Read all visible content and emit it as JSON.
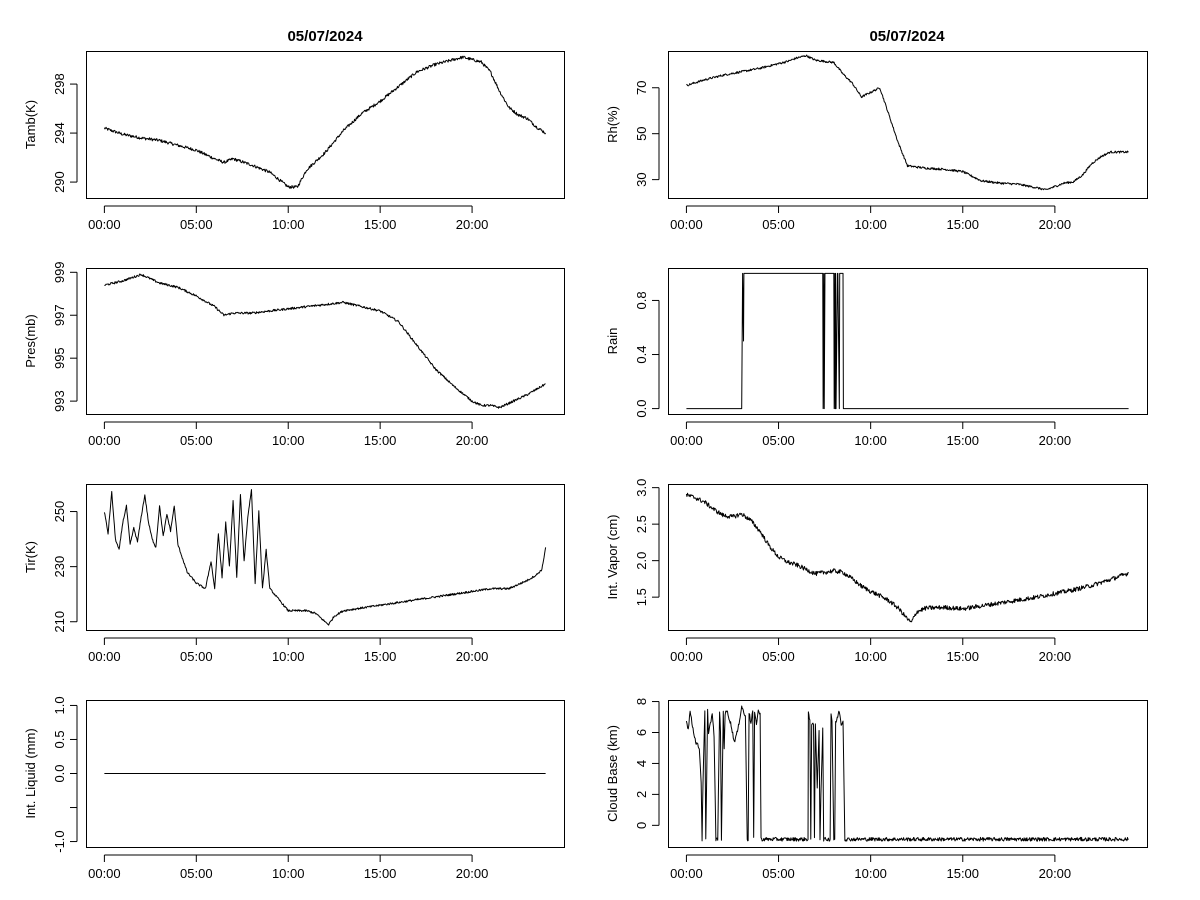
{
  "titles": {
    "left": "05/07/2024",
    "right": "05/07/2024"
  },
  "chart_data": [
    {
      "type": "line",
      "id": "tamb",
      "ylabel": "Tamb(K)",
      "xlim": [
        -1,
        25
      ],
      "ylim": [
        288.7,
        300.7
      ],
      "xticks": [
        0,
        5,
        10,
        15,
        20
      ],
      "xticklabels": [
        "00:00",
        "05:00",
        "10:00",
        "15:00",
        "20:00"
      ],
      "yticks": [
        290,
        294,
        298
      ],
      "yticklabels": [
        "290",
        "294",
        "298"
      ],
      "noise": 0.12,
      "x": [
        0,
        1,
        2,
        3,
        4,
        5,
        6,
        6.5,
        7,
        8,
        9,
        10,
        10.5,
        11,
        12,
        13,
        14,
        15,
        16,
        17,
        18,
        19,
        19.5,
        20,
        20.5,
        21,
        21.5,
        22,
        22.5,
        23,
        23.5,
        24
      ],
      "y": [
        294.4,
        293.9,
        293.6,
        293.4,
        293.0,
        292.6,
        291.9,
        291.6,
        291.9,
        291.4,
        290.8,
        289.6,
        289.6,
        291.0,
        292.4,
        294.2,
        295.6,
        296.6,
        297.8,
        299.0,
        299.6,
        300.0,
        300.2,
        300.0,
        299.8,
        299.0,
        297.4,
        296.1,
        295.5,
        295.2,
        294.5,
        294.0
      ]
    },
    {
      "type": "line",
      "id": "rh",
      "ylabel": "Rh(%)",
      "xlim": [
        -1,
        25
      ],
      "ylim": [
        22,
        86
      ],
      "xticks": [
        0,
        5,
        10,
        15,
        20
      ],
      "xticklabels": [
        "00:00",
        "05:00",
        "10:00",
        "15:00",
        "20:00"
      ],
      "yticks": [
        30,
        50,
        70
      ],
      "yticklabels": [
        "30",
        "50",
        "70"
      ],
      "noise": 0.45,
      "x": [
        0,
        1,
        2,
        3,
        4,
        5,
        5.5,
        6,
        6.5,
        7,
        8,
        8.5,
        9,
        9.5,
        10,
        10.5,
        11,
        11.5,
        12,
        13,
        14,
        15,
        16,
        17,
        18,
        19,
        19.5,
        20,
        20.5,
        21,
        21.5,
        22,
        22.5,
        23,
        24
      ],
      "y": [
        71,
        73.5,
        75.5,
        77,
        78.5,
        80.5,
        81.5,
        83,
        84,
        82,
        81,
        76,
        72,
        66,
        68,
        70,
        58,
        46,
        36,
        35,
        34.5,
        33.5,
        29.5,
        28.5,
        28,
        26.5,
        25.5,
        27,
        28.5,
        29,
        32,
        37,
        40,
        42,
        42
      ]
    },
    {
      "type": "line",
      "id": "pres",
      "ylabel": "Pres(mb)",
      "xlim": [
        -1,
        25
      ],
      "ylim": [
        992.4,
        999.2
      ],
      "xticks": [
        0,
        5,
        10,
        15,
        20
      ],
      "xticklabels": [
        "00:00",
        "05:00",
        "10:00",
        "15:00",
        "20:00"
      ],
      "yticks": [
        993,
        995,
        997,
        999
      ],
      "yticklabels": [
        "993",
        "995",
        "997",
        "999"
      ],
      "noise": 0.05,
      "x": [
        0,
        1,
        2,
        3,
        4,
        5,
        6,
        6.5,
        7,
        8,
        9,
        10,
        11,
        12,
        13,
        14,
        15,
        16,
        17,
        18,
        19,
        20,
        20.5,
        21,
        21.5,
        22,
        23,
        24
      ],
      "y": [
        998.4,
        998.6,
        998.9,
        998.5,
        998.3,
        997.9,
        997.4,
        997.0,
        997.1,
        997.1,
        997.2,
        997.3,
        997.4,
        997.5,
        997.6,
        997.4,
        997.2,
        996.7,
        995.6,
        994.5,
        993.7,
        993.0,
        992.8,
        992.8,
        992.7,
        992.9,
        993.3,
        993.8
      ]
    },
    {
      "type": "line",
      "id": "rain",
      "ylabel": "Rain",
      "xlim": [
        -1,
        25
      ],
      "ylim": [
        -0.04,
        1.04
      ],
      "xticks": [
        0,
        5,
        10,
        15,
        20
      ],
      "xticklabels": [
        "00:00",
        "05:00",
        "10:00",
        "15:00",
        "20:00"
      ],
      "yticks": [
        0,
        0.4,
        0.8
      ],
      "yticklabels": [
        "0.0",
        "0.4",
        "0.8"
      ],
      "noise": 0,
      "x": [
        0,
        3.0,
        3.05,
        3.1,
        3.12,
        3.14,
        3.16,
        3.18,
        7.4,
        7.42,
        7.46,
        7.48,
        7.52,
        7.54,
        8.0,
        8.02,
        8.06,
        8.08,
        8.1,
        8.12,
        8.2,
        8.22,
        8.3,
        8.32,
        8.5,
        8.52,
        24
      ],
      "y": [
        0,
        0,
        1,
        0.5,
        1,
        1,
        1,
        1,
        1,
        0,
        1,
        0,
        1,
        1,
        1,
        0,
        1,
        0,
        1,
        0,
        1,
        1,
        0,
        1,
        1,
        0,
        0
      ]
    },
    {
      "type": "line",
      "id": "tir",
      "ylabel": "Tir(K)",
      "xlim": [
        -1,
        25
      ],
      "ylim": [
        207,
        260
      ],
      "xticks": [
        0,
        5,
        10,
        15,
        20
      ],
      "xticklabels": [
        "00:00",
        "05:00",
        "10:00",
        "15:00",
        "20:00"
      ],
      "yticks": [
        210,
        230,
        250
      ],
      "yticklabels": [
        "210",
        "230",
        "250"
      ],
      "noise": 0.35,
      "x": [
        0,
        0.2,
        0.4,
        0.6,
        0.8,
        1.0,
        1.2,
        1.4,
        1.6,
        1.8,
        2.0,
        2.2,
        2.4,
        2.6,
        2.8,
        3.0,
        3.2,
        3.4,
        3.6,
        3.8,
        4.0,
        4.5,
        5.0,
        5.5,
        5.8,
        6.0,
        6.2,
        6.4,
        6.6,
        6.8,
        7.0,
        7.2,
        7.4,
        7.6,
        7.8,
        8.0,
        8.2,
        8.4,
        8.6,
        8.8,
        9.0,
        9.5,
        10,
        10.5,
        11,
        11.5,
        12,
        12.2,
        12.5,
        13,
        14,
        15,
        16,
        17,
        18,
        19,
        20,
        21,
        22,
        23,
        23.5,
        23.8,
        24
      ],
      "y": [
        250,
        242,
        257,
        240,
        236,
        246,
        252,
        238,
        244,
        239,
        248,
        256,
        246,
        240,
        237,
        252,
        241,
        249,
        243,
        252,
        238,
        228,
        224,
        222,
        232,
        222,
        242,
        226,
        246,
        230,
        254,
        226,
        256,
        232,
        248,
        258,
        224,
        250,
        222,
        236,
        222,
        218,
        214,
        214,
        214,
        213,
        210,
        209,
        212,
        214,
        215,
        216,
        217,
        218,
        219,
        220,
        221,
        222,
        222,
        225,
        227,
        229,
        237
      ]
    },
    {
      "type": "line",
      "id": "vapor",
      "ylabel": "Int. Vapor (cm)",
      "xlim": [
        -1,
        25
      ],
      "ylim": [
        1.05,
        3.05
      ],
      "xticks": [
        0,
        5,
        10,
        15,
        20
      ],
      "xticklabels": [
        "00:00",
        "05:00",
        "10:00",
        "15:00",
        "20:00"
      ],
      "yticks": [
        1.5,
        2.0,
        2.5,
        3.0
      ],
      "yticklabels": [
        "1.5",
        "2.0",
        "2.5",
        "3.0"
      ],
      "noise": 0.03,
      "x": [
        0,
        0.5,
        1,
        1.5,
        2,
        2.5,
        3,
        3.5,
        4,
        4.5,
        5,
        5.5,
        6,
        6.5,
        7,
        7.5,
        8,
        8.5,
        9,
        9.5,
        10,
        10.5,
        11,
        11.5,
        12,
        12.2,
        12.5,
        13,
        14,
        15,
        16,
        17,
        18,
        19,
        20,
        21,
        22,
        23,
        24
      ],
      "y": [
        2.9,
        2.86,
        2.8,
        2.7,
        2.62,
        2.6,
        2.64,
        2.55,
        2.4,
        2.2,
        2.05,
        1.98,
        1.94,
        1.88,
        1.82,
        1.84,
        1.86,
        1.84,
        1.75,
        1.65,
        1.58,
        1.52,
        1.45,
        1.35,
        1.2,
        1.15,
        1.3,
        1.35,
        1.36,
        1.34,
        1.38,
        1.42,
        1.46,
        1.5,
        1.55,
        1.6,
        1.66,
        1.74,
        1.83
      ]
    },
    {
      "type": "line",
      "id": "liquid",
      "ylabel": "Int. Liquid (mm)",
      "xlim": [
        -1,
        25
      ],
      "ylim": [
        -1.08,
        1.08
      ],
      "xticks": [
        0,
        5,
        10,
        15,
        20
      ],
      "xticklabels": [
        "00:00",
        "05:00",
        "10:00",
        "15:00",
        "20:00"
      ],
      "yticks": [
        -1.0,
        -0.5,
        0.0,
        0.5,
        1.0
      ],
      "yticklabels": [
        "-1.0",
        "",
        "0.0",
        "0.5",
        "1.0"
      ],
      "noise": 0,
      "x": [
        0,
        24
      ],
      "y": [
        0,
        0
      ]
    },
    {
      "type": "line",
      "id": "cloudbase",
      "ylabel": "Cloud Base (km)",
      "xlim": [
        -1,
        25
      ],
      "ylim": [
        -1.4,
        8.1
      ],
      "xticks": [
        0,
        5,
        10,
        15,
        20
      ],
      "xticklabels": [
        "00:00",
        "05:00",
        "10:00",
        "15:00",
        "20:00"
      ],
      "yticks": [
        0,
        2,
        4,
        6,
        8
      ],
      "yticklabels": [
        "0",
        "2",
        "4",
        "6",
        "8"
      ],
      "noise": 0.12,
      "x": [
        0,
        0.1,
        0.2,
        0.3,
        0.5,
        0.7,
        0.8,
        0.85,
        0.9,
        1.0,
        1.05,
        1.1,
        1.15,
        1.2,
        1.3,
        1.4,
        1.5,
        1.6,
        1.7,
        1.8,
        1.85,
        1.9,
        2.0,
        2.05,
        2.1,
        2.2,
        2.4,
        2.6,
        2.8,
        3.0,
        3.2,
        3.3,
        3.35,
        3.4,
        3.5,
        3.6,
        3.65,
        3.7,
        3.8,
        3.9,
        4.0,
        4.05,
        6.6,
        6.62,
        6.7,
        6.75,
        6.8,
        6.9,
        6.95,
        7.0,
        7.1,
        7.2,
        7.25,
        7.3,
        7.4,
        7.45,
        7.5,
        7.6,
        7.8,
        7.85,
        7.9,
        8.0,
        8.05,
        8.1,
        8.3,
        8.4,
        8.5,
        8.6,
        8.65,
        8.7,
        24
      ],
      "y": [
        6.8,
        6.2,
        7.4,
        6.6,
        5.4,
        5.0,
        2.8,
        -0.9,
        2.8,
        7.3,
        -0.9,
        3.0,
        7.4,
        6.0,
        6.6,
        7.2,
        5.8,
        -0.9,
        -0.9,
        7.4,
        6.0,
        -0.9,
        7.3,
        5.0,
        7.2,
        7.4,
        6.6,
        5.4,
        6.2,
        7.7,
        7.0,
        -0.9,
        -0.9,
        7.3,
        6.6,
        7.4,
        -0.9,
        7.2,
        6.6,
        7.4,
        7.2,
        -0.9,
        -0.9,
        7.3,
        6.7,
        -0.9,
        6.6,
        6.6,
        -0.9,
        6.6,
        2.4,
        6.2,
        -0.9,
        2.0,
        6.2,
        -0.9,
        -0.9,
        -0.9,
        -0.9,
        7.2,
        6.8,
        -0.9,
        -0.9,
        6.6,
        7.4,
        6.5,
        6.8,
        -0.9,
        -0.9,
        -0.9,
        -0.9
      ]
    }
  ]
}
